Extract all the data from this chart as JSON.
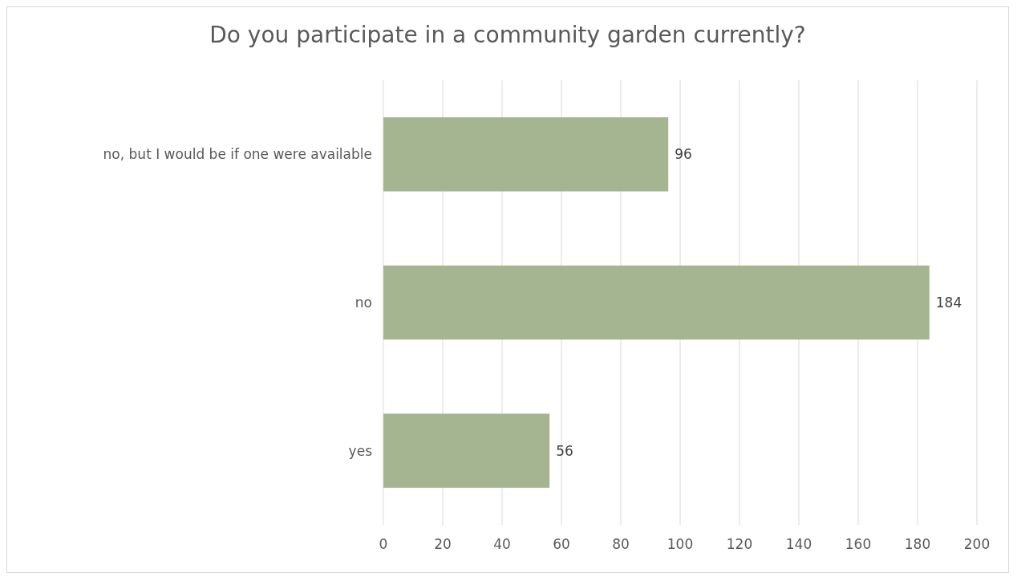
{
  "chart_data": {
    "type": "bar",
    "orientation": "horizontal",
    "title": "Do you participate in a community garden currently?",
    "categories": [
      "no, but I would be if one were available",
      "no",
      "yes"
    ],
    "values": [
      96,
      184,
      56
    ],
    "color": "#a5b592",
    "xlim": [
      0,
      200
    ],
    "xticks": [
      0,
      20,
      40,
      60,
      80,
      100,
      120,
      140,
      160,
      180,
      200
    ],
    "grid": "x",
    "data_labels": true
  }
}
